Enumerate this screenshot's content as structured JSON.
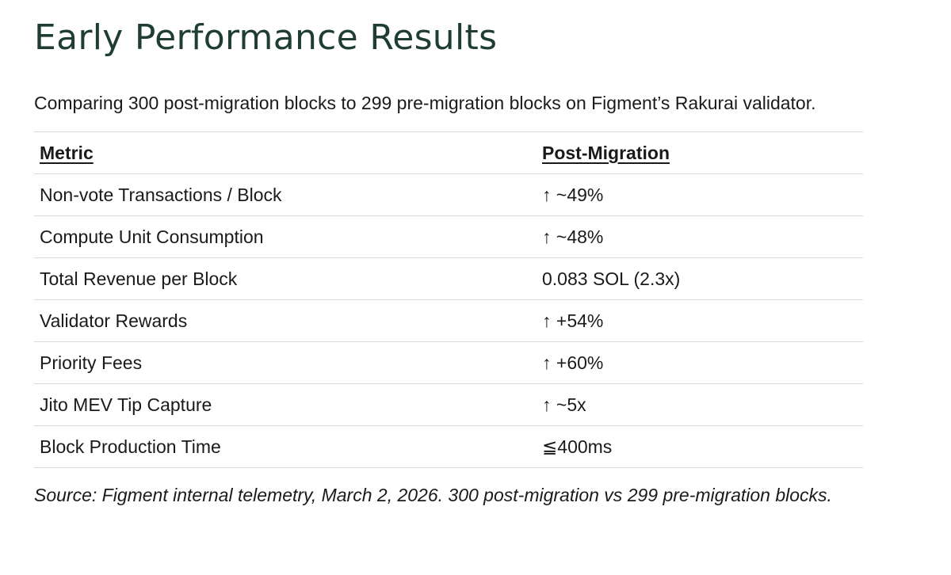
{
  "title": "Early Performance Results",
  "intro": "Comparing 300 post-migration blocks to 299 pre-migration blocks on Figment’s Rakurai validator.",
  "table": {
    "headers": [
      "Metric",
      "Post-Migration"
    ],
    "rows": [
      {
        "metric": "Non-vote Transactions / Block",
        "value": "↑ ~49%"
      },
      {
        "metric": "Compute Unit Consumption",
        "value": "↑ ~48%"
      },
      {
        "metric": "Total Revenue per Block",
        "value": "0.083 SOL (2.3x)"
      },
      {
        "metric": "Validator Rewards",
        "value": "↑ +54%"
      },
      {
        "metric": "Priority Fees",
        "value": "↑ +60%"
      },
      {
        "metric": "Jito MEV Tip Capture",
        "value": "↑ ~5x"
      },
      {
        "metric": "Block Production Time",
        "value": "≦400ms"
      }
    ]
  },
  "footer": "Source: Figment internal telemetry, March 2, 2026. 300 post-migration vs 299 pre-migration blocks.",
  "colors": {
    "title": "#1f3d35",
    "text": "#1a1a1a",
    "divider": "#dcdcdc"
  }
}
